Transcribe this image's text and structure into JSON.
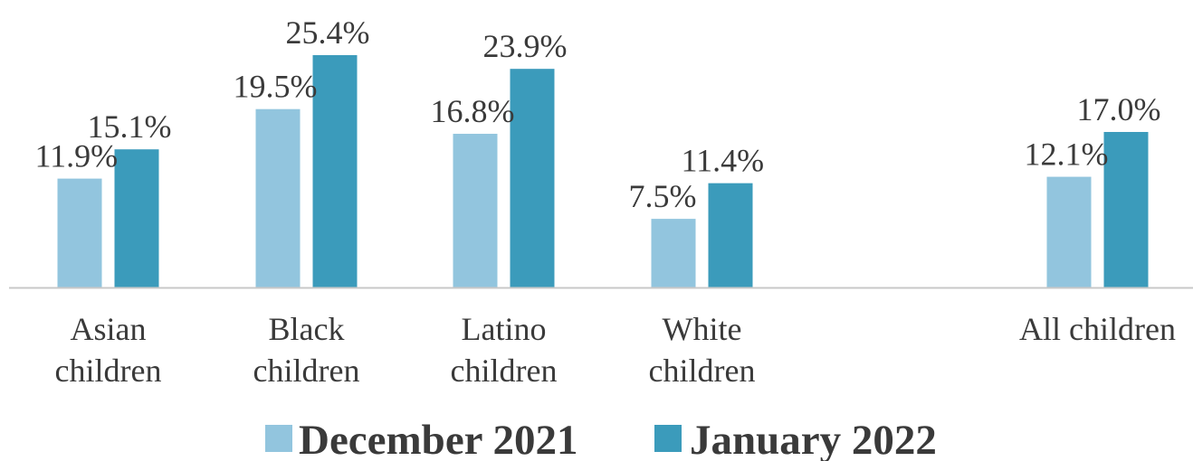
{
  "chart_data": {
    "type": "bar",
    "categories": [
      [
        "Asian",
        "children"
      ],
      [
        "Black",
        "children"
      ],
      [
        "Latino",
        "children"
      ],
      [
        "White",
        "children"
      ],
      [
        "All children"
      ]
    ],
    "series": [
      {
        "name": "December 2021",
        "color": "#92c5de",
        "values": [
          11.9,
          19.5,
          16.8,
          7.5,
          12.1
        ],
        "labels": [
          "11.9%",
          "19.5%",
          "16.8%",
          "7.5%",
          "12.1%"
        ]
      },
      {
        "name": "January 2022",
        "color": "#3b9bbb",
        "values": [
          15.1,
          25.4,
          23.9,
          11.4,
          17.0
        ],
        "labels": [
          "15.1%",
          "25.4%",
          "23.9%",
          "11.4%",
          "17.0%"
        ]
      }
    ],
    "category_gap_before": [
      false,
      false,
      false,
      false,
      true
    ],
    "ylim": [
      0,
      25.4
    ],
    "grid": false,
    "axis_color": "#c8c8c8",
    "legend_position": "bottom"
  }
}
